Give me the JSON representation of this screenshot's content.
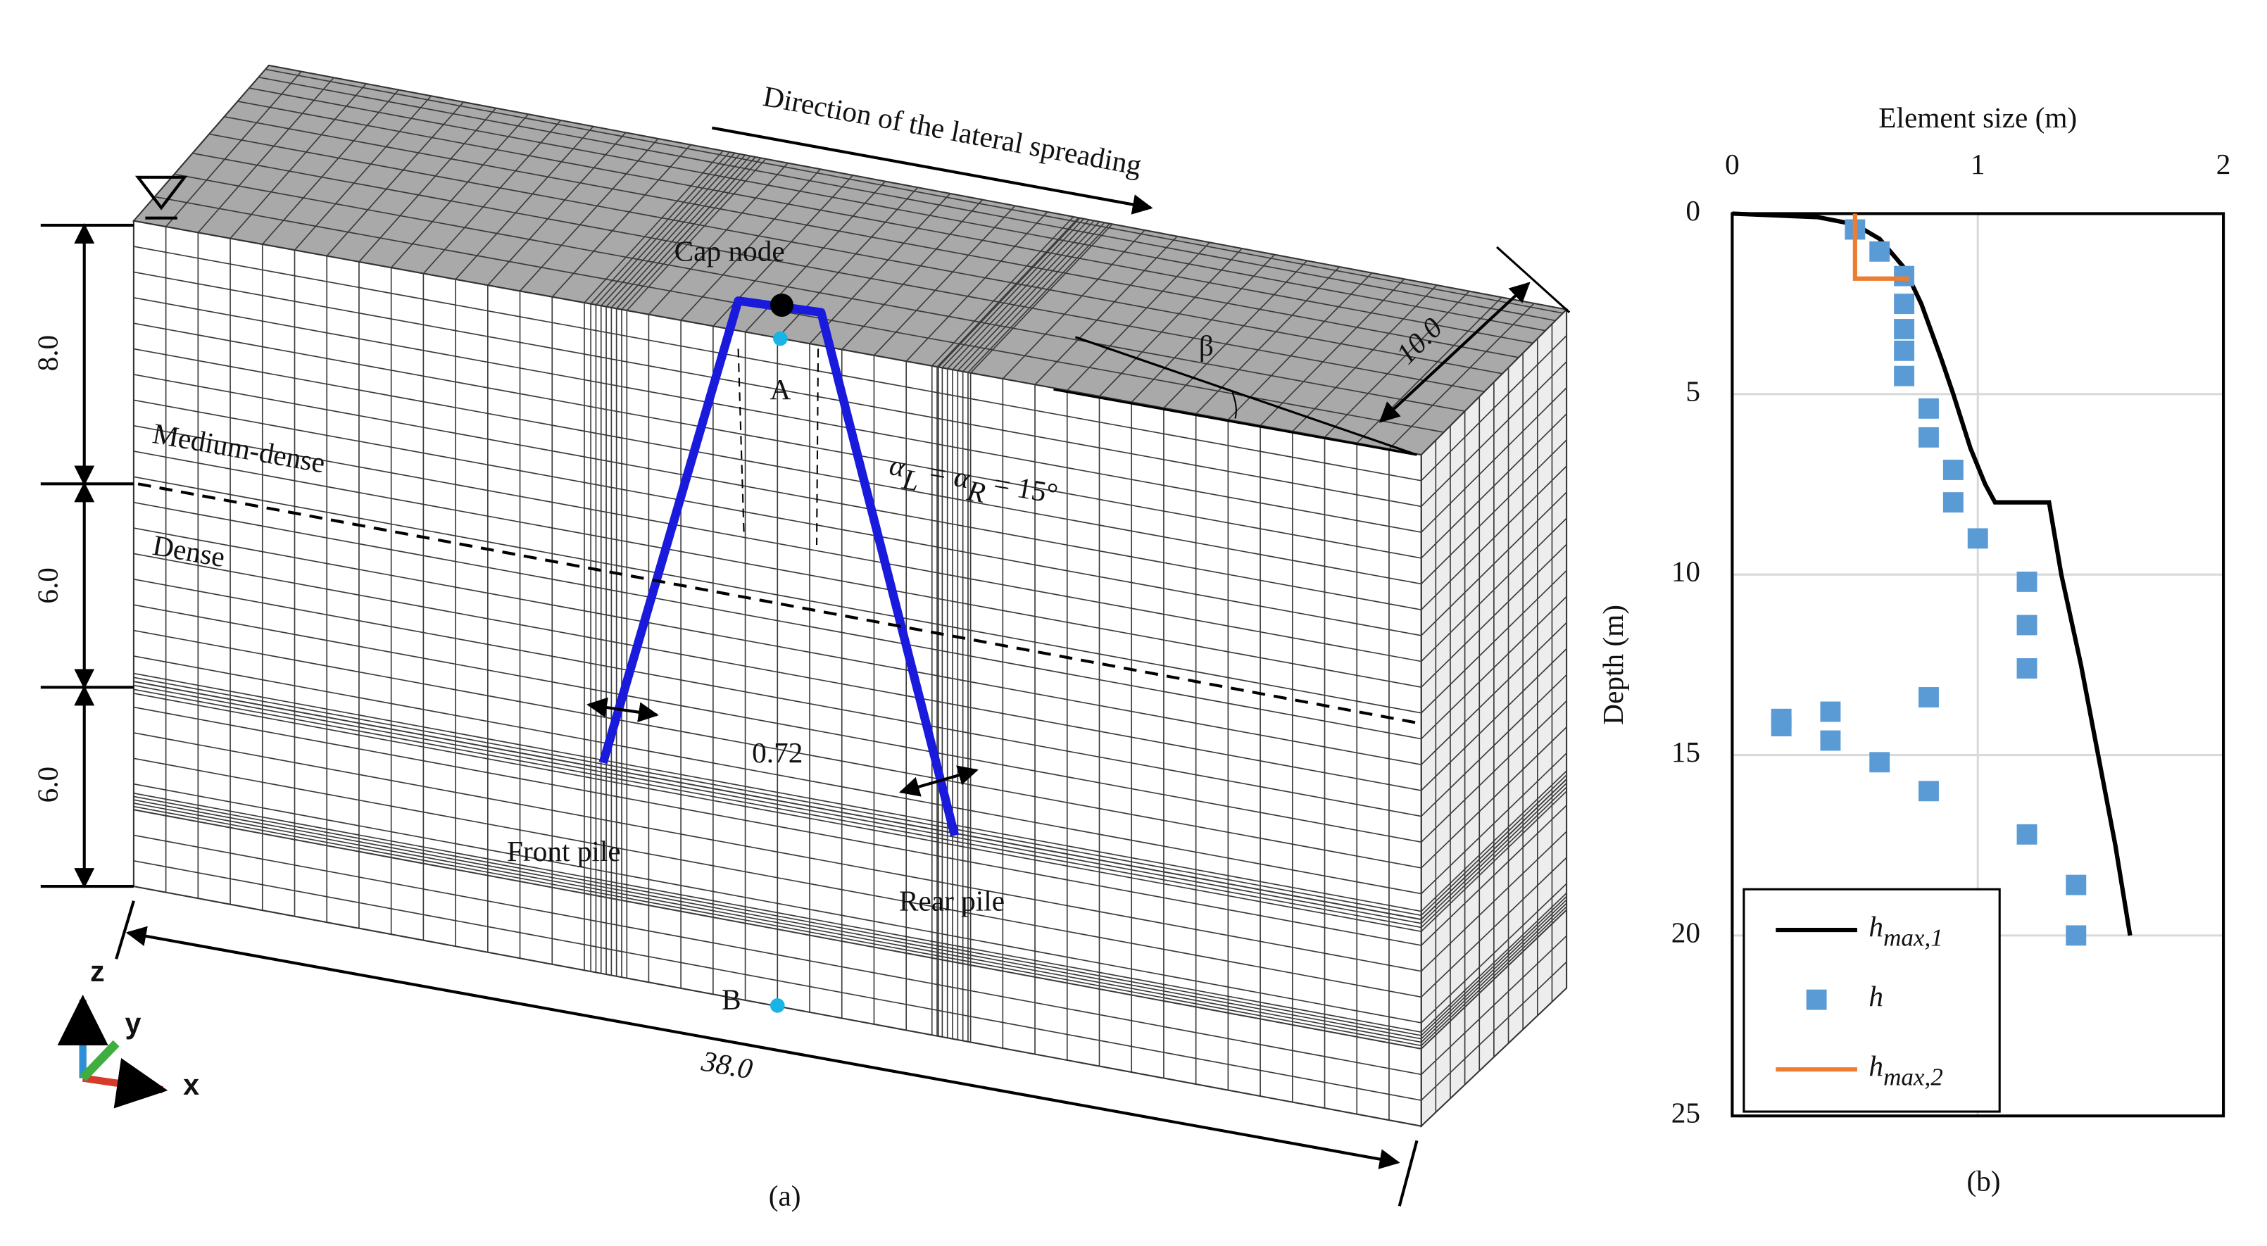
{
  "figure": {
    "panel_a": {
      "direction_label": "Direction of the lateral spreading",
      "cap_node_label": "Cap node",
      "point_a_label": "A",
      "point_b_label": "B",
      "layer_upper_label": "Medium-dense",
      "layer_lower_label": "Dense",
      "angle_label_parts": [
        "α",
        "L",
        " = α",
        "R",
        " = 15°"
      ],
      "beta_label": "β",
      "width_label": "10.0",
      "depth_labels": [
        "8.0",
        "6.0",
        "6.0"
      ],
      "spacing_label": "0.72",
      "front_pile_label": "Front pile",
      "rear_pile_label": "Rear pile",
      "length_label": "38.0",
      "axis_labels": [
        "z",
        "y",
        "x"
      ],
      "caption": "(a)"
    },
    "panel_b_caption": "(b)"
  },
  "chart_data": {
    "type": "scatter",
    "x_label": "Element size (m)",
    "y_label": "Depth (m)",
    "xlim": [
      0,
      2
    ],
    "xticks": [
      0,
      1,
      2
    ],
    "ylim": [
      0,
      25
    ],
    "yticks": [
      0,
      5,
      10,
      15,
      20,
      25
    ],
    "y_inverted": true,
    "x_axis_position": "top",
    "grid": true,
    "legend": "lower-left",
    "series": [
      {
        "name": "h",
        "subscript": "max,1",
        "color": "#000000",
        "mark": "line",
        "x": [
          0,
          0.35,
          0.5,
          0.6,
          0.7,
          0.77,
          0.85,
          0.9,
          0.97,
          1.03,
          1.07,
          1.29,
          1.34,
          1.42,
          1.49,
          1.56,
          1.62
        ],
        "values": [
          0,
          0.1,
          0.3,
          0.7,
          1.5,
          2.5,
          4,
          5,
          6.5,
          7.5,
          8,
          8,
          10,
          12.5,
          15,
          17.5,
          20
        ]
      },
      {
        "name": "h",
        "color": "#5b9bd5",
        "mark": "square",
        "x": [
          0.5,
          0.6,
          0.7,
          0.7,
          0.7,
          0.7,
          0.7,
          0.8,
          0.8,
          0.9,
          0.9,
          1.0,
          1.2,
          1.2,
          1.2,
          0.8,
          0.2,
          0.2,
          0.4,
          0.4,
          0.6,
          0.8,
          1.2,
          1.4,
          1.4
        ],
        "values": [
          0.44,
          1.05,
          1.73,
          2.5,
          3.2,
          3.8,
          4.5,
          5.4,
          6.2,
          7.1,
          8.0,
          9.0,
          10.2,
          11.4,
          12.6,
          13.4,
          14.0,
          14.2,
          13.8,
          14.6,
          15.2,
          16.0,
          17.2,
          18.6,
          20.0
        ]
      },
      {
        "name": "h",
        "subscript": "max,2",
        "color": "#ed7d31",
        "mark": "line",
        "x": [
          0.5,
          0.5,
          0.72
        ],
        "values": [
          0,
          1.8,
          1.8
        ]
      }
    ]
  }
}
